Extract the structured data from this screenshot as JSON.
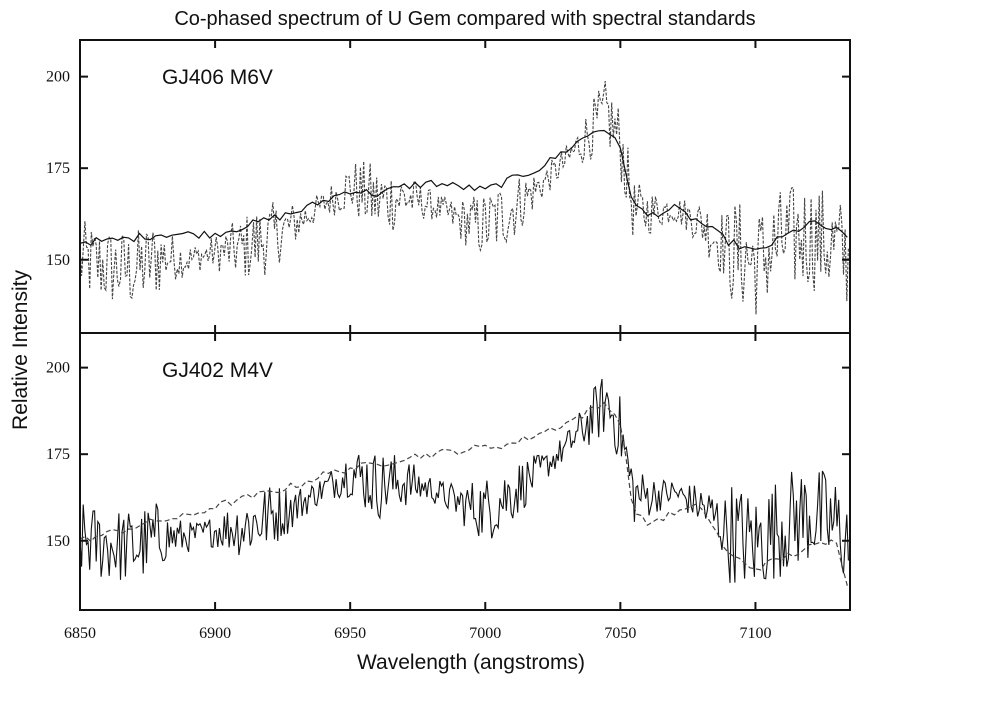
{
  "chart_data": {
    "type": "line",
    "title": "Co-phased spectrum of U Gem compared with spectral standards",
    "xlabel": "Wavelength (angstroms)",
    "ylabel": "Relative Intensity",
    "xlim": [
      6850,
      7135
    ],
    "x_ticks": [
      6850,
      6900,
      6950,
      7000,
      7050,
      7100
    ],
    "grid": false,
    "panels": [
      {
        "label": "GJ406 M6V",
        "ylim": [
          130,
          210
        ],
        "y_ticks": [
          150,
          175,
          200
        ],
        "series": [
          {
            "role": "U Gem co-phased spectrum",
            "style": "dashed-dense",
            "x": [
              6850,
              6860,
              6870,
              6880,
              6890,
              6900,
              6910,
              6920,
              6930,
              6940,
              6950,
              6960,
              6970,
              6980,
              6990,
              7000,
              7010,
              7020,
              7030,
              7040,
              7045,
              7050,
              7055,
              7060,
              7070,
              7080,
              7090,
              7100,
              7110,
              7120,
              7130,
              7135
            ],
            "y": [
              150,
              148,
              147,
              151,
              150,
              152,
              153,
              156,
              160,
              165,
              170,
              166,
              167,
              165,
              161,
              159,
              164,
              170,
              177,
              186,
              190,
              182,
              163,
              163,
              164,
              160,
              153,
              149,
              155,
              157,
              153,
              150
            ]
          },
          {
            "role": "GJ406 M6V standard",
            "style": "solid",
            "x": [
              6850,
              6860,
              6870,
              6880,
              6890,
              6900,
              6910,
              6920,
              6930,
              6940,
              6950,
              6960,
              6970,
              6980,
              6990,
              7000,
              7010,
              7020,
              7030,
              7040,
              7045,
              7050,
              7055,
              7060,
              7070,
              7080,
              7090,
              7100,
              7110,
              7120,
              7130,
              7135
            ],
            "y": [
              155,
              155,
              156,
              157,
              157,
              157,
              159,
              161,
              163,
              166,
              169,
              168,
              170,
              171,
              170,
              169,
              172,
              175,
              180,
              185,
              186,
              180,
              165,
              162,
              164,
              160,
              155,
              152,
              156,
              160,
              158,
              155
            ]
          }
        ]
      },
      {
        "label": "GJ402 M4V",
        "ylim": [
          130,
          210
        ],
        "y_ticks": [
          150,
          175,
          200
        ],
        "series": [
          {
            "role": "U Gem co-phased spectrum",
            "style": "solid-dense",
            "x": [
              6850,
              6860,
              6870,
              6880,
              6890,
              6900,
              6910,
              6920,
              6930,
              6940,
              6950,
              6960,
              6970,
              6980,
              6990,
              7000,
              7010,
              7020,
              7030,
              7040,
              7045,
              7050,
              7055,
              7060,
              7070,
              7080,
              7090,
              7100,
              7110,
              7120,
              7130,
              7135
            ],
            "y": [
              150,
              149,
              148,
              151,
              151,
              153,
              154,
              157,
              160,
              165,
              170,
              166,
              167,
              165,
              161,
              159,
              164,
              170,
              177,
              186,
              190,
              182,
              163,
              163,
              164,
              160,
              153,
              149,
              155,
              158,
              154,
              150
            ]
          },
          {
            "role": "GJ402 M4V standard",
            "style": "dashed",
            "x": [
              6850,
              6860,
              6870,
              6880,
              6890,
              6900,
              6910,
              6920,
              6930,
              6940,
              6950,
              6960,
              6970,
              6980,
              6990,
              7000,
              7010,
              7020,
              7030,
              7040,
              7045,
              7050,
              7055,
              7060,
              7070,
              7080,
              7090,
              7100,
              7110,
              7120,
              7130,
              7135
            ],
            "y": [
              150,
              152,
              154,
              156,
              157,
              160,
              162,
              164,
              166,
              169,
              171,
              172,
              174,
              175,
              176,
              177,
              178,
              181,
              184,
              188,
              190,
              184,
              158,
              155,
              158,
              160,
              146,
              142,
              145,
              148,
              150,
              135
            ]
          }
        ]
      }
    ]
  }
}
